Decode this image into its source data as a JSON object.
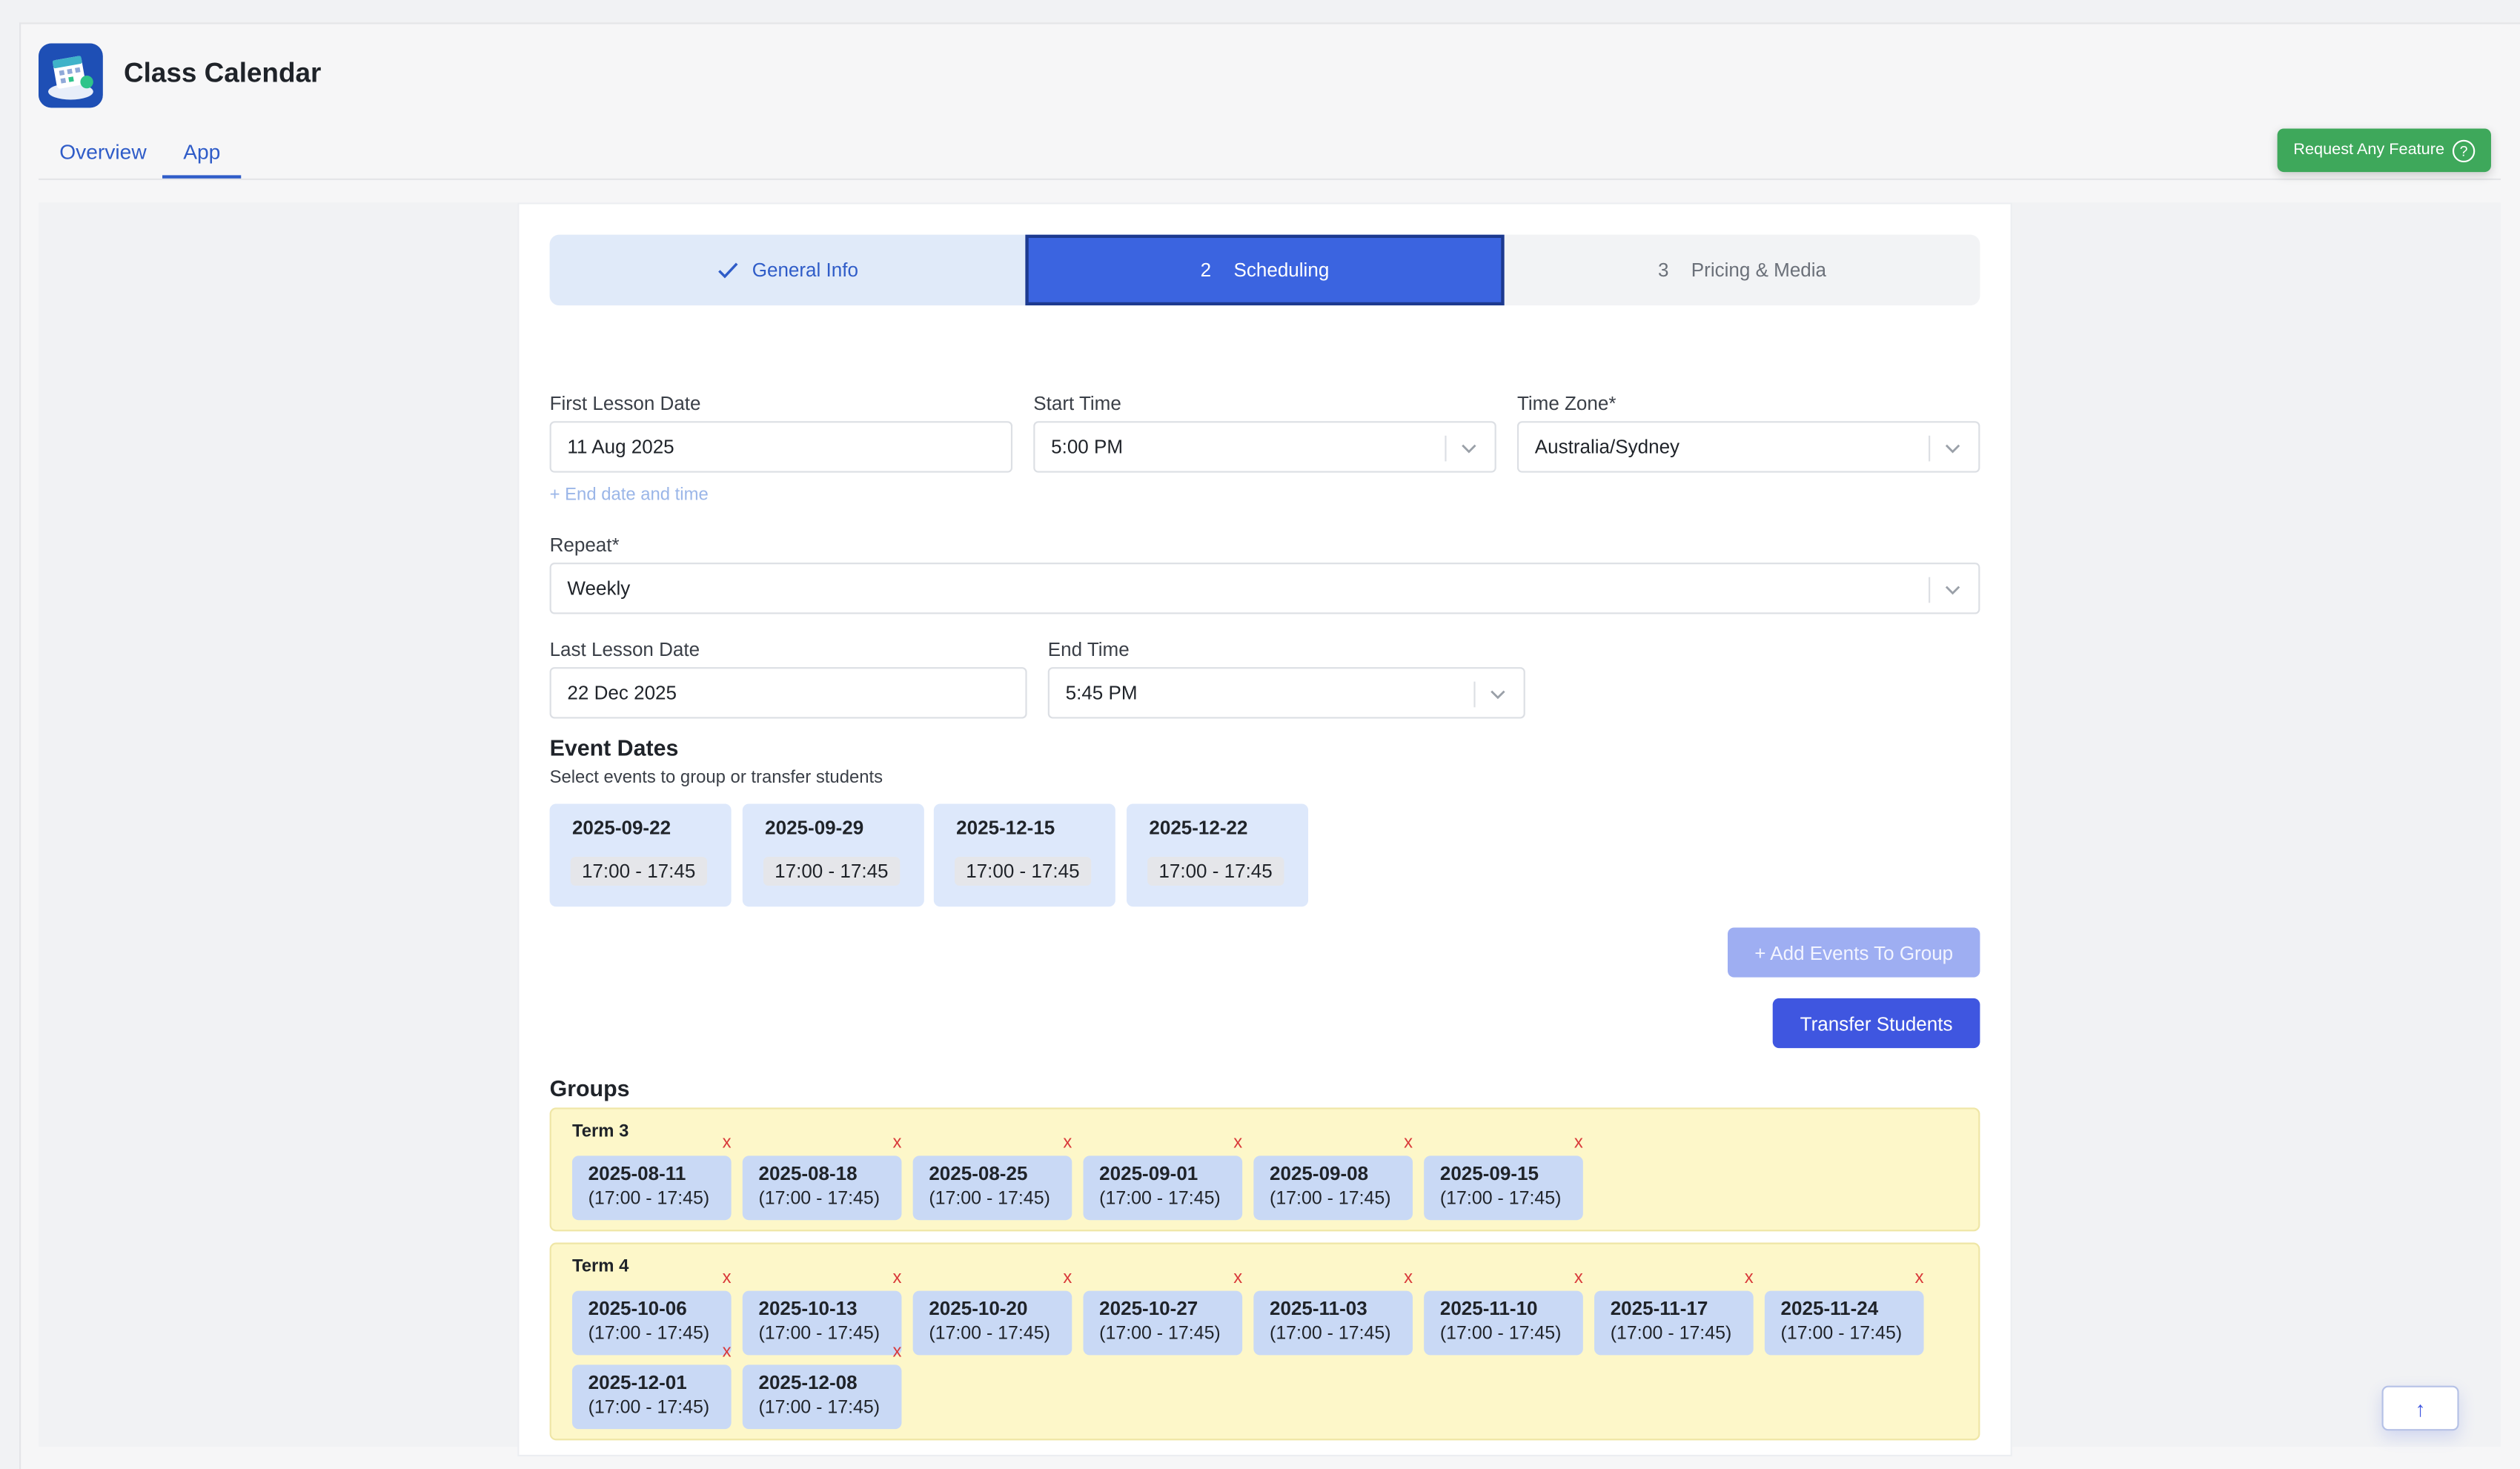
{
  "app": {
    "title": "Class Calendar",
    "icon": "calendar-app-icon"
  },
  "tabs": [
    {
      "label": "Overview"
    },
    {
      "label": "App"
    }
  ],
  "feature_button": {
    "label": "Request Any Feature",
    "icon": "help-circle-icon"
  },
  "stepper": [
    {
      "label": "General Info",
      "state": "done",
      "icon": "check-icon"
    },
    {
      "num": "2",
      "label": "Scheduling",
      "state": "active"
    },
    {
      "num": "3",
      "label": "Pricing & Media",
      "state": "todo"
    }
  ],
  "form": {
    "first_lesson_date": {
      "label": "First Lesson Date",
      "value": "11 Aug 2025"
    },
    "start_time": {
      "label": "Start Time",
      "value": "5:00 PM"
    },
    "time_zone": {
      "label": "Time Zone*",
      "value": "Australia/Sydney"
    },
    "end_link": "+ End date and time",
    "repeat": {
      "label": "Repeat*",
      "value": "Weekly"
    },
    "last_lesson_date": {
      "label": "Last Lesson Date",
      "value": "22 Dec 2025"
    },
    "end_time": {
      "label": "End Time",
      "value": "5:45 PM"
    }
  },
  "event_dates": {
    "title": "Event Dates",
    "subtitle": "Select events to group or transfer students",
    "events": [
      {
        "date": "2025-09-22",
        "time": "17:00 - 17:45"
      },
      {
        "date": "2025-09-29",
        "time": "17:00 - 17:45"
      },
      {
        "date": "2025-12-15",
        "time": "17:00 - 17:45"
      },
      {
        "date": "2025-12-22",
        "time": "17:00 - 17:45"
      }
    ]
  },
  "actions": {
    "add_to_group": "+ Add Events To Group",
    "transfer": "Transfer Students"
  },
  "groups": {
    "title": "Groups",
    "remove_mark": "x",
    "list": [
      {
        "name": "Term 3",
        "items": [
          {
            "date": "2025-08-11",
            "time": "(17:00 - 17:45)"
          },
          {
            "date": "2025-08-18",
            "time": "(17:00 - 17:45)"
          },
          {
            "date": "2025-08-25",
            "time": "(17:00 - 17:45)"
          },
          {
            "date": "2025-09-01",
            "time": "(17:00 - 17:45)"
          },
          {
            "date": "2025-09-08",
            "time": "(17:00 - 17:45)"
          },
          {
            "date": "2025-09-15",
            "time": "(17:00 - 17:45)"
          }
        ]
      },
      {
        "name": "Term 4",
        "items": [
          {
            "date": "2025-10-06",
            "time": "(17:00 - 17:45)"
          },
          {
            "date": "2025-10-13",
            "time": "(17:00 - 17:45)"
          },
          {
            "date": "2025-10-20",
            "time": "(17:00 - 17:45)"
          },
          {
            "date": "2025-10-27",
            "time": "(17:00 - 17:45)"
          },
          {
            "date": "2025-11-03",
            "time": "(17:00 - 17:45)"
          },
          {
            "date": "2025-11-10",
            "time": "(17:00 - 17:45)"
          },
          {
            "date": "2025-11-17",
            "time": "(17:00 - 17:45)"
          },
          {
            "date": "2025-11-24",
            "time": "(17:00 - 17:45)"
          },
          {
            "date": "2025-12-01",
            "time": "(17:00 - 17:45)"
          },
          {
            "date": "2025-12-08",
            "time": "(17:00 - 17:45)"
          }
        ]
      }
    ]
  },
  "scroll_top": {
    "icon": "arrow-up-icon",
    "glyph": "↑"
  },
  "colors": {
    "primary": "#3b64e0",
    "accent_green": "#3ea85b",
    "group_bg": "#fdf7c9",
    "chip_bg": "#c9d9f5",
    "remove": "#d93a3a"
  }
}
